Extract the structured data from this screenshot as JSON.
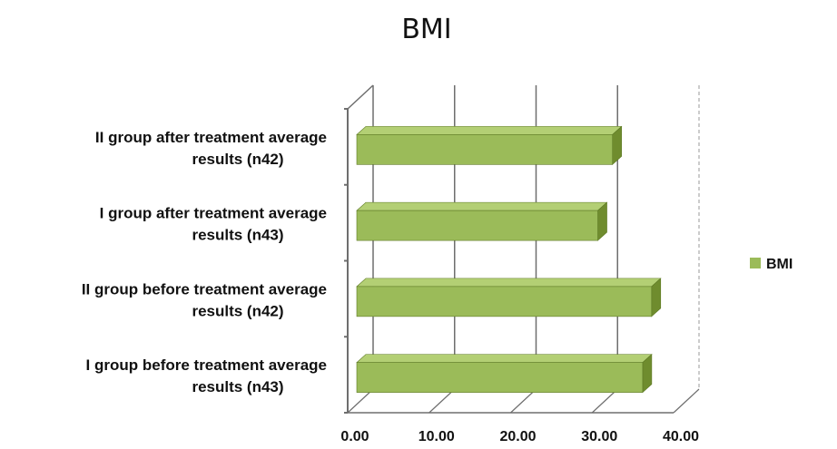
{
  "chart_data": {
    "type": "bar",
    "orientation": "horizontal",
    "title": "BMI",
    "categories": [
      [
        "II group after treatment average",
        "results (n42)"
      ],
      [
        "I group after treatment average",
        "results (n43)"
      ],
      [
        "II group before treatment average",
        "results (n42)"
      ],
      [
        "I group before treatment average",
        "results (n43)"
      ]
    ],
    "series": [
      {
        "name": "BMI",
        "values": [
          32.5,
          30.7,
          37.3,
          36.2
        ]
      }
    ],
    "xlim": [
      0,
      40
    ],
    "ticks": [
      "0.00",
      "10.00",
      "20.00",
      "30.00",
      "40.00"
    ],
    "grid": true,
    "legend": "right",
    "colors": {
      "bar_front": "#9bbb59",
      "bar_top": "#b3cf74",
      "bar_side": "#6f8c2e"
    }
  }
}
